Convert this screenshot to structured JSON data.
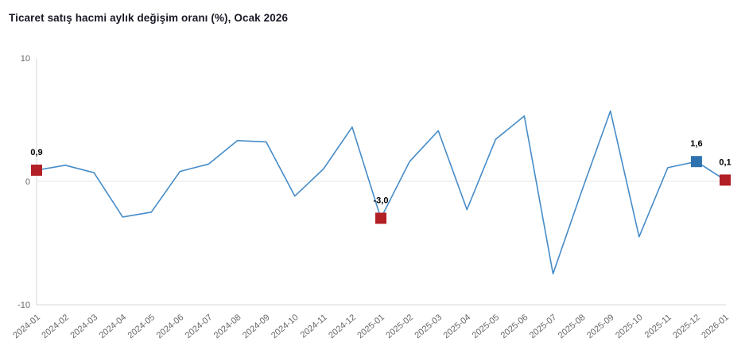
{
  "title": "Ticaret satış hacmi aylık değişim oranı (%), Ocak 2026",
  "colors": {
    "line": "#468cc8",
    "marker_red": "#b21f24",
    "marker_blue": "#2d72ae",
    "axis_line": "#d6d6d6",
    "zero_line": "#e4e4e4",
    "tick_text": "#666666",
    "point_label_text": "#000000",
    "title_text": "#1a1a26",
    "background": "#ffffff"
  },
  "chart_data": {
    "type": "line",
    "title": "Ticaret satış hacmi aylık değişim oranı (%), Ocak 2026",
    "xlabel": "",
    "ylabel": "",
    "ylim": [
      -10,
      10
    ],
    "yticks": [
      10,
      0,
      -10
    ],
    "grid": "zero-line-only",
    "legend": "none",
    "categories": [
      "2024-01",
      "2024-02",
      "2024-03",
      "2024-04",
      "2024-05",
      "2024-06",
      "2024-07",
      "2024-08",
      "2024-09",
      "2024-10",
      "2024-11",
      "2024-12",
      "2025-01",
      "2025-02",
      "2025-03",
      "2025-04",
      "2025-05",
      "2025-06",
      "2025-07",
      "2025-08",
      "2025-09",
      "2025-10",
      "2025-11",
      "2025-12",
      "2026-01"
    ],
    "values": [
      0.9,
      1.3,
      0.7,
      -2.9,
      -2.5,
      0.8,
      1.4,
      3.3,
      3.2,
      -1.2,
      1.0,
      4.4,
      -3.0,
      1.6,
      4.1,
      -2.3,
      3.4,
      5.3,
      -7.5,
      -0.8,
      5.7,
      -4.5,
      1.1,
      1.6,
      0.1
    ],
    "point_labels": [
      {
        "category": "2024-01",
        "label": "0,9",
        "marker_color": "red"
      },
      {
        "category": "2025-01",
        "label": "-3,0",
        "marker_color": "red"
      },
      {
        "category": "2025-12",
        "label": "1,6",
        "marker_color": "blue"
      },
      {
        "category": "2026-01",
        "label": "0,1",
        "marker_color": "red"
      }
    ]
  }
}
